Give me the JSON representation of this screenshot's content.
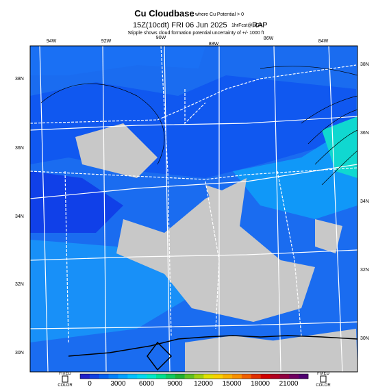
{
  "header": {
    "title": "Cu Cloudbase",
    "title_note": "where Cu Potential > 0",
    "valid": "15Z(10cdt) FRI 06 Jun 2025",
    "forecast": "1hrFcst@UGA",
    "model": "RAP",
    "subtitle": "Stipple shows cloud formation potential uncertainty of +/- 1000 ft"
  },
  "map": {
    "top_labels": [
      "94W",
      "92W",
      "90W",
      "88W",
      "86W",
      "84W"
    ],
    "right_labels": [
      "38N",
      "36N",
      "34N",
      "32N",
      "30N"
    ],
    "left_labels": [
      "38N",
      "36N",
      "34N",
      "32N",
      "30N"
    ]
  },
  "colorbar": {
    "left_label": [
      "FIXED",
      "COLOR"
    ],
    "right_label": [
      "FIXED",
      "COLOR"
    ],
    "ticks": [
      0,
      3000,
      6000,
      9000,
      12000,
      15000,
      18000,
      21000
    ],
    "colors": [
      "#2020c8",
      "#1040e0",
      "#0060f0",
      "#0080f8",
      "#00a0ff",
      "#00c0ff",
      "#00d8f0",
      "#00e8c8",
      "#00e090",
      "#10c860",
      "#20b030",
      "#60c020",
      "#a0d010",
      "#e0e000",
      "#f8d000",
      "#f8b000",
      "#f89000",
      "#f06000",
      "#e03000",
      "#d00000",
      "#b00020",
      "#900040",
      "#700060",
      "#500070"
    ]
  }
}
